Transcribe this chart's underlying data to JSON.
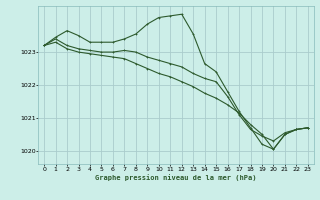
{
  "title": "Graphe pression niveau de la mer (hPa)",
  "background_color": "#cceee8",
  "plot_bg_color": "#cceee8",
  "grid_color": "#aacccc",
  "line_color": "#2d5a2d",
  "ylim": [
    1019.6,
    1024.4
  ],
  "yticks": [
    1020,
    1021,
    1022,
    1023
  ],
  "xlim": [
    -0.5,
    23.5
  ],
  "xticks": [
    0,
    1,
    2,
    3,
    4,
    5,
    6,
    7,
    8,
    9,
    10,
    11,
    12,
    13,
    14,
    15,
    16,
    17,
    18,
    19,
    20,
    21,
    22,
    23
  ],
  "series1": [
    1023.2,
    1023.45,
    1023.65,
    1023.5,
    1023.3,
    1023.3,
    1023.3,
    1023.4,
    1023.55,
    1023.85,
    1024.05,
    1024.1,
    1024.15,
    1023.55,
    1022.65,
    1022.4,
    1021.8,
    1021.2,
    1020.7,
    1020.2,
    1020.05,
    1020.5,
    1020.65,
    1020.7
  ],
  "series2": [
    1023.2,
    1023.4,
    1023.2,
    1023.1,
    1023.05,
    1023.0,
    1023.0,
    1023.05,
    1023.0,
    1022.85,
    1022.75,
    1022.65,
    1022.55,
    1022.35,
    1022.2,
    1022.1,
    1021.65,
    1021.1,
    1020.65,
    1020.45,
    1020.3,
    1020.55,
    1020.65,
    1020.7
  ],
  "series3": [
    1023.2,
    1023.3,
    1023.1,
    1023.0,
    1022.95,
    1022.9,
    1022.85,
    1022.8,
    1022.65,
    1022.5,
    1022.35,
    1022.25,
    1022.1,
    1021.95,
    1021.75,
    1021.6,
    1021.4,
    1021.15,
    1020.8,
    1020.5,
    1020.05,
    1020.5,
    1020.65,
    1020.7
  ]
}
